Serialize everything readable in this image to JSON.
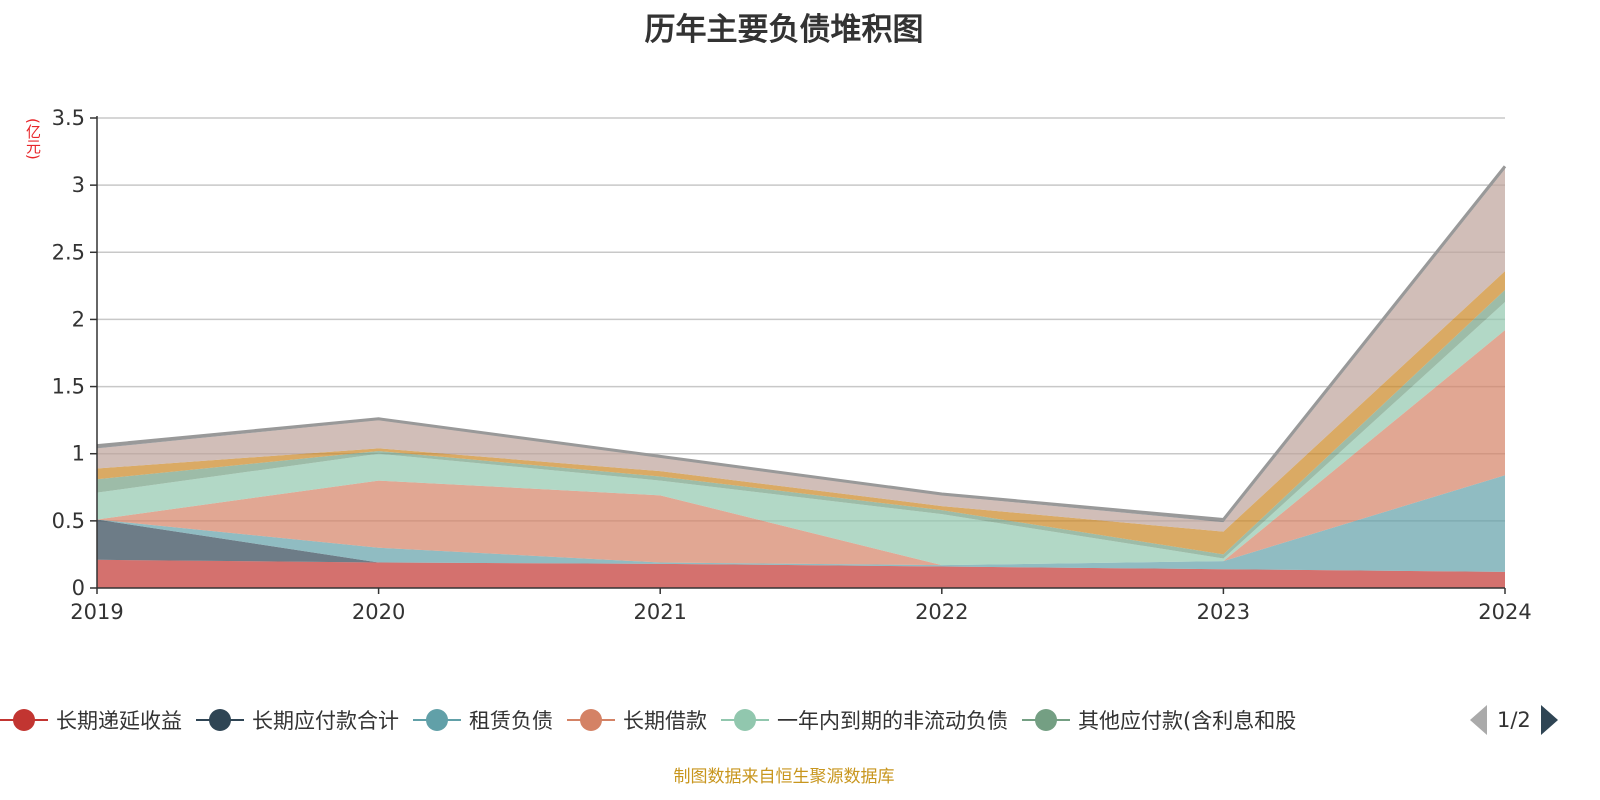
{
  "title": "历年主要负债堆积图",
  "footer": "制图数据来自恒生聚源数据库",
  "legend_pager": "1/2",
  "chart_data": {
    "type": "area",
    "stacked": true,
    "title": "历年主要负债堆积图",
    "ylabel": "(亿元)",
    "xlabel": "",
    "x": [
      "2019",
      "2020",
      "2021",
      "2022",
      "2023",
      "2024"
    ],
    "ylim": [
      0,
      3.5
    ],
    "yticks": [
      "0",
      "0.5",
      "1",
      "1.5",
      "2",
      "2.5",
      "3",
      "3.5"
    ],
    "grid": true,
    "legend_position": "bottom",
    "series": [
      {
        "name": "长期递延收益",
        "color": "#c23531",
        "values": [
          0.21,
          0.19,
          0.18,
          0.16,
          0.14,
          0.12
        ]
      },
      {
        "name": "长期应付款合计",
        "color": "#2f4554",
        "values": [
          0.3,
          0,
          0,
          0,
          0,
          0
        ]
      },
      {
        "name": "租赁负债",
        "color": "#61a0a8",
        "values": [
          0,
          0.11,
          0.01,
          0.01,
          0.06,
          0.72
        ]
      },
      {
        "name": "长期借款",
        "color": "#d48265",
        "values": [
          0,
          0.5,
          0.5,
          0,
          0,
          1.08
        ]
      },
      {
        "name": "一年内到期的非流动负债",
        "color": "#91c7ae",
        "values": [
          0.2,
          0.2,
          0.11,
          0.38,
          0.02,
          0.21
        ]
      },
      {
        "name": "其他应付款(含利息和股",
        "color": "#749f83",
        "values": [
          0.1,
          0.02,
          0.03,
          0.03,
          0.03,
          0.09
        ]
      },
      {
        "color": "#ca8622",
        "values": [
          0.08,
          0.02,
          0.04,
          0.03,
          0.17,
          0.14
        ]
      },
      {
        "color": "#bda29a",
        "values": [
          0.15,
          0.21,
          0.1,
          0.08,
          0.07,
          0.76
        ]
      },
      {
        "color": "#6e7074",
        "values": [
          0.02,
          0.01,
          0.01,
          0.01,
          0.02,
          0.02
        ]
      }
    ]
  }
}
